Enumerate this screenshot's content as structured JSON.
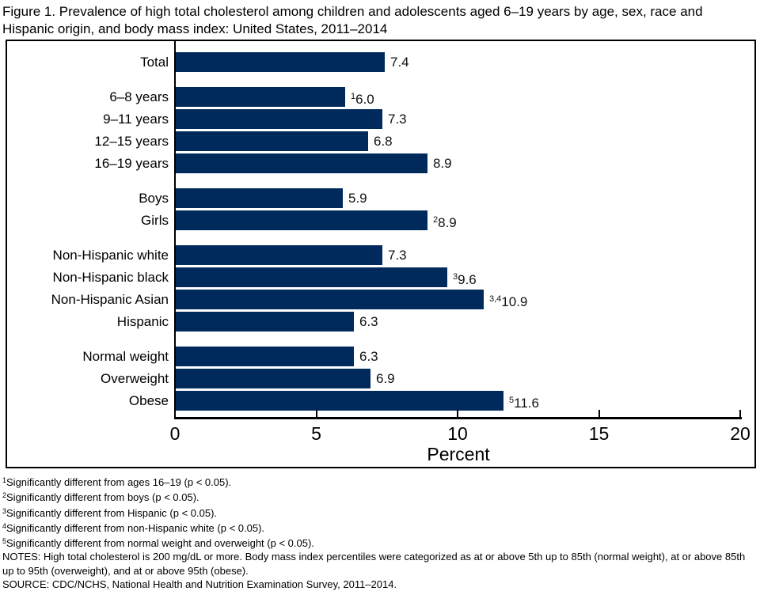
{
  "title": "Figure 1. Prevalence of high total cholesterol among children and adolescents aged 6–19 years by age, sex, race and Hispanic origin, and body mass index: United States, 2011–2014",
  "chart_data": {
    "type": "bar",
    "orientation": "horizontal",
    "title": "",
    "xlabel": "Percent",
    "ylabel": "",
    "xlim": [
      0,
      20
    ],
    "xticks": [
      "0",
      "5",
      "10",
      "15",
      "20"
    ],
    "grid": false,
    "legend": false,
    "bar_color": "#002a5c",
    "groups": [
      {
        "rows": [
          {
            "label": "Total",
            "value": 7.4,
            "display": "7.4",
            "sup": ""
          }
        ]
      },
      {
        "rows": [
          {
            "label": "6–8 years",
            "value": 6.0,
            "display": "6.0",
            "sup": "1"
          },
          {
            "label": "9–11 years",
            "value": 7.3,
            "display": "7.3",
            "sup": ""
          },
          {
            "label": "12–15 years",
            "value": 6.8,
            "display": "6.8",
            "sup": ""
          },
          {
            "label": "16–19 years",
            "value": 8.9,
            "display": "8.9",
            "sup": ""
          }
        ]
      },
      {
        "rows": [
          {
            "label": "Boys",
            "value": 5.9,
            "display": "5.9",
            "sup": ""
          },
          {
            "label": "Girls",
            "value": 8.9,
            "display": "8.9",
            "sup": "2"
          }
        ]
      },
      {
        "rows": [
          {
            "label": "Non-Hispanic white",
            "value": 7.3,
            "display": "7.3",
            "sup": ""
          },
          {
            "label": "Non-Hispanic black",
            "value": 9.6,
            "display": "9.6",
            "sup": "3"
          },
          {
            "label": "Non-Hispanic Asian",
            "value": 10.9,
            "display": "10.9",
            "sup": "3,4"
          },
          {
            "label": "Hispanic",
            "value": 6.3,
            "display": "6.3",
            "sup": ""
          }
        ]
      },
      {
        "rows": [
          {
            "label": "Normal weight",
            "value": 6.3,
            "display": "6.3",
            "sup": ""
          },
          {
            "label": "Overweight",
            "value": 6.9,
            "display": "6.9",
            "sup": ""
          },
          {
            "label": "Obese",
            "value": 11.6,
            "display": "11.6",
            "sup": "5"
          }
        ]
      }
    ]
  },
  "footnotes": [
    {
      "sup": "1",
      "text": "Significantly different from ages 16–19 (p < 0.05)."
    },
    {
      "sup": "2",
      "text": "Significantly different from boys (p < 0.05)."
    },
    {
      "sup": "3",
      "text": "Significantly different from Hispanic (p < 0.05)."
    },
    {
      "sup": "4",
      "text": "Significantly different from non-Hispanic white (p < 0.05)."
    },
    {
      "sup": "5",
      "text": "Significantly different from normal weight and overweight (p < 0.05)."
    }
  ],
  "notes": "NOTES: High total cholesterol is 200 mg/dL or more. Body mass index percentiles were categorized as at or above 5th up to 85th (normal weight), at or above 85th up to 95th (overweight), and at or above 95th (obese).",
  "source": "SOURCE: CDC/NCHS, National Health and Nutrition Examination Survey, 2011–2014."
}
